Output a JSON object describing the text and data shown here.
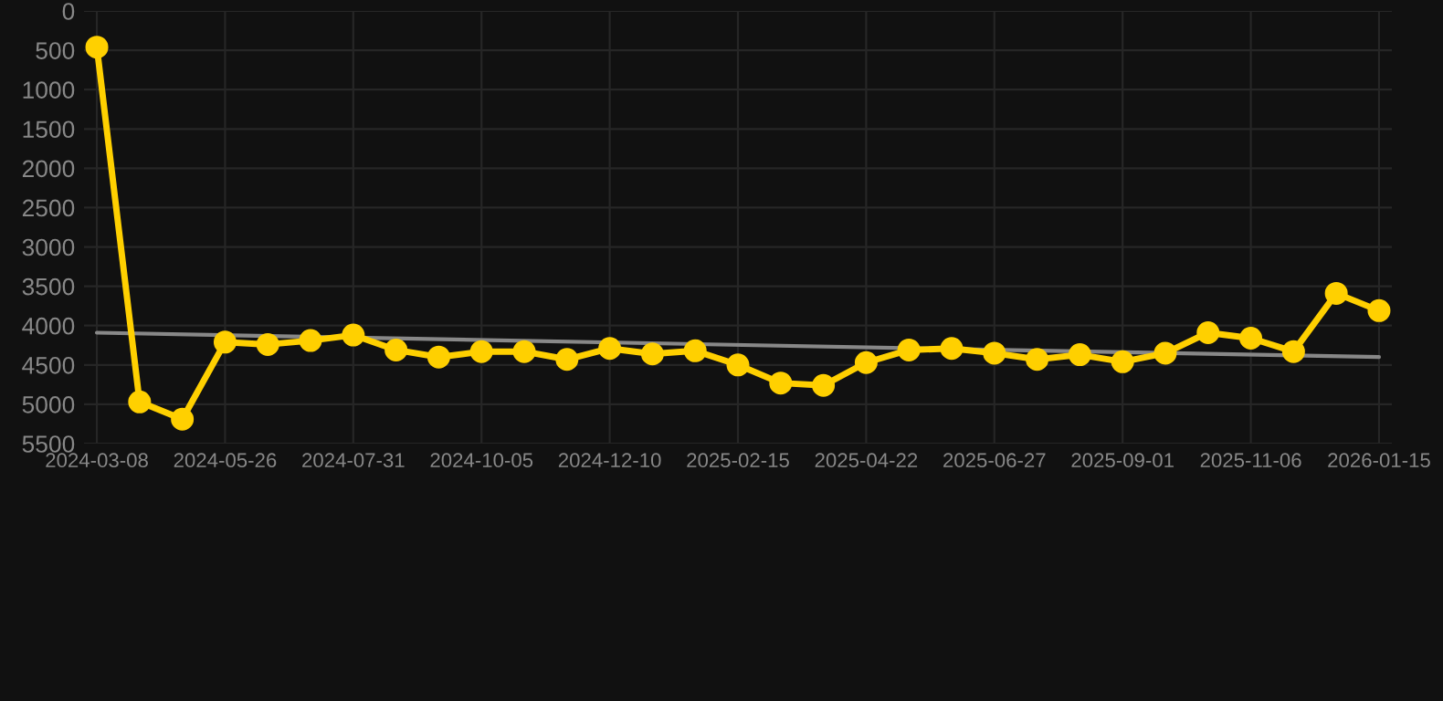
{
  "chart_data": {
    "type": "line",
    "categories": [
      "2024-03-08",
      null,
      null,
      "2024-05-26",
      null,
      null,
      "2024-07-31",
      null,
      null,
      "2024-10-05",
      null,
      null,
      "2024-12-10",
      null,
      null,
      "2025-02-15",
      null,
      null,
      "2025-04-22",
      null,
      null,
      "2025-06-27",
      null,
      null,
      "2025-09-01",
      null,
      null,
      "2025-11-06",
      null,
      null,
      "2026-01-15"
    ],
    "series": [
      {
        "color": "#ffd000",
        "marker": "circle",
        "values": [
          460,
          4970,
          5190,
          4210,
          4240,
          4190,
          4120,
          4310,
          4400,
          4330,
          4330,
          4430,
          4290,
          4360,
          4320,
          4500,
          4730,
          4760,
          4470,
          4310,
          4290,
          4350,
          4430,
          4370,
          4460,
          4350,
          4090,
          4160,
          4330,
          3590,
          3810
        ]
      },
      {
        "type": "line",
        "color": "#888888",
        "marker": "none",
        "values": [
          4090,
          null,
          null,
          null,
          null,
          null,
          null,
          null,
          null,
          null,
          null,
          null,
          null,
          null,
          null,
          null,
          null,
          null,
          null,
          null,
          null,
          null,
          null,
          null,
          null,
          null,
          null,
          null,
          null,
          null,
          4400
        ]
      }
    ],
    "ylim": [
      5500,
      0
    ],
    "yticks": [
      0,
      500,
      1000,
      1500,
      2000,
      2500,
      3000,
      3500,
      4000,
      4500,
      5000,
      5500
    ],
    "grid": true,
    "line_style": "solid"
  }
}
